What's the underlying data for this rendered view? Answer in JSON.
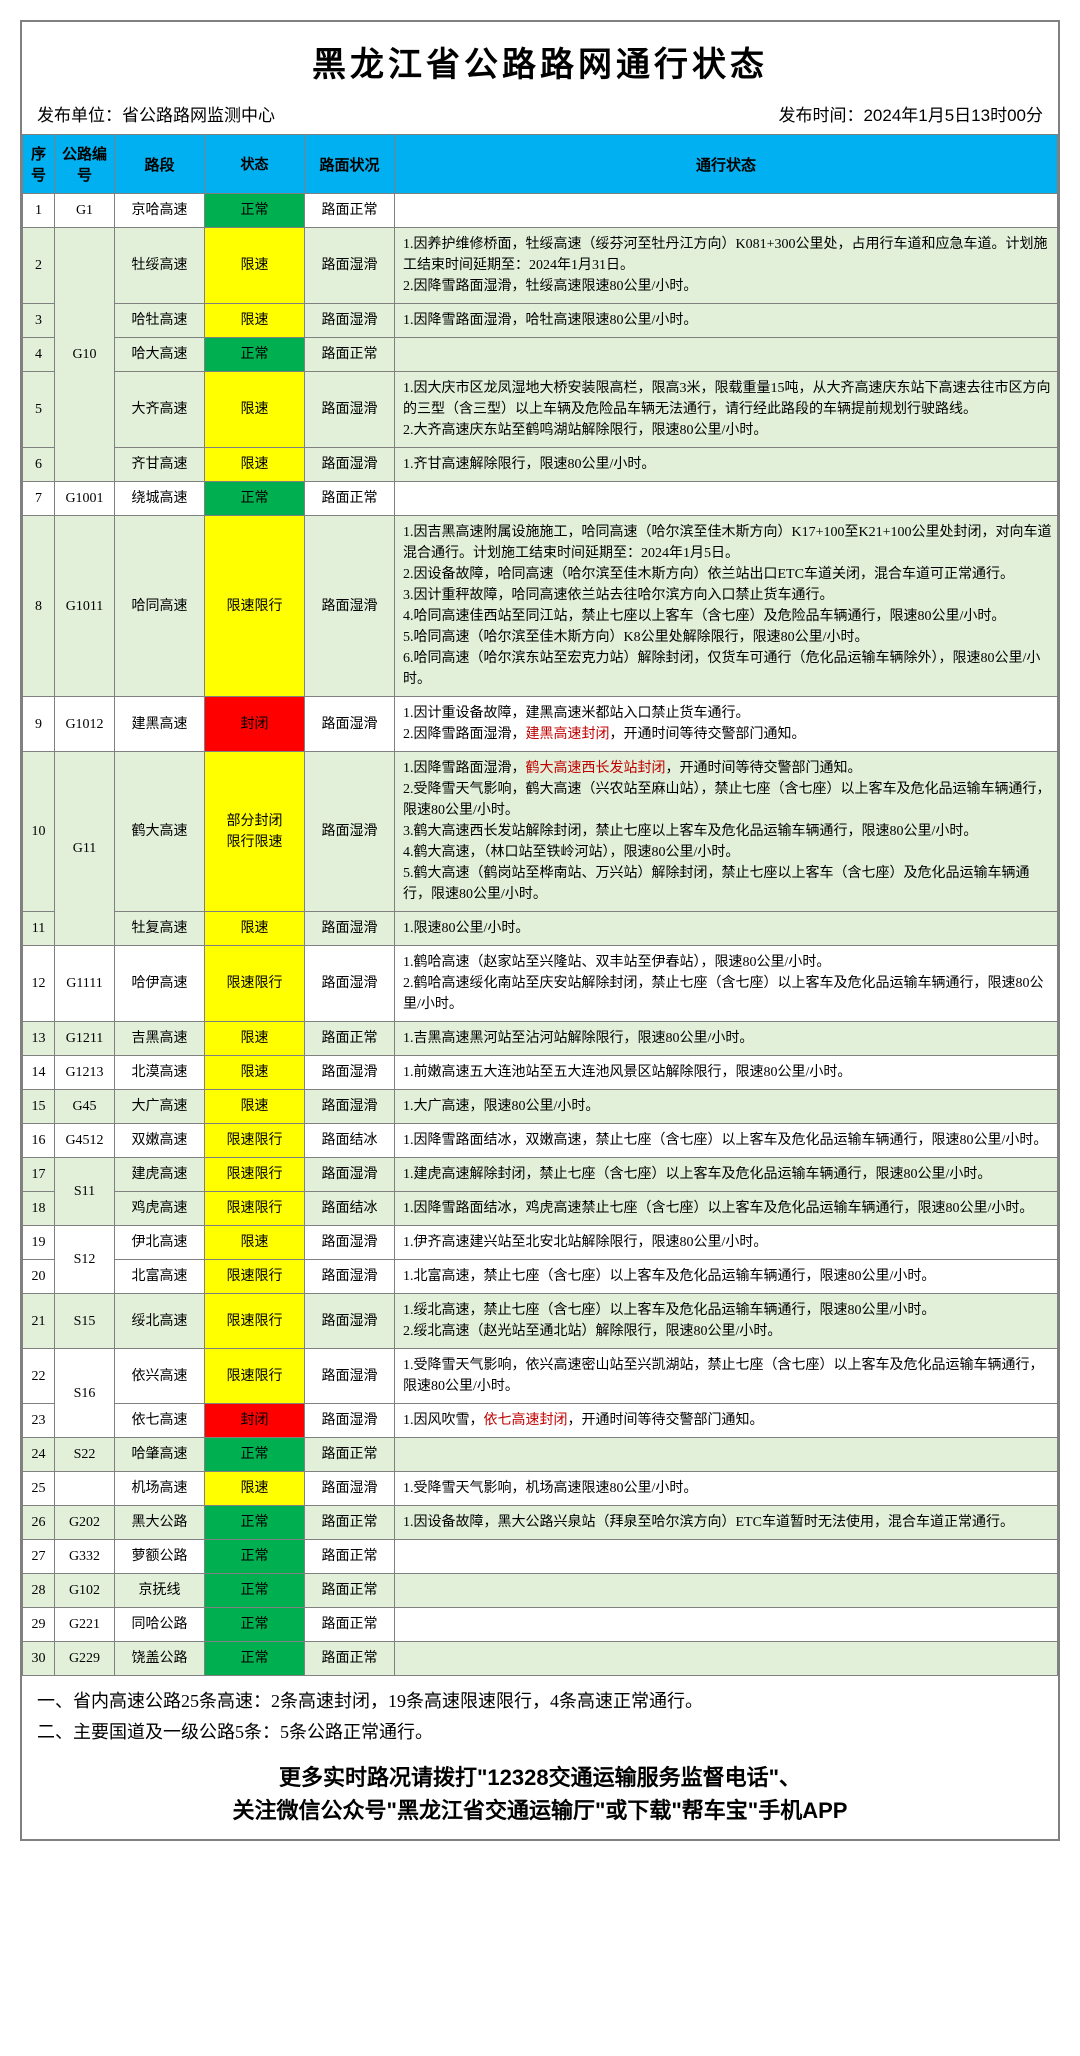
{
  "title": "黑龙江省公路路网通行状态",
  "publisher_label": "发布单位：省公路路网监测中心",
  "time_label": "发布时间：",
  "publish_time": "2024年1月5日13时00分",
  "headers": {
    "seq": "序号",
    "code": "公路编号",
    "section": "路段",
    "status": "状态",
    "surface": "路面状况",
    "detail": "通行状态"
  },
  "status_colors": {
    "normal": "#00b050",
    "limit": "#ffff00",
    "closed": "#ff0000"
  },
  "rows": [
    {
      "seq": "1",
      "code": "G1",
      "code_rowspan": 1,
      "section": "京哈高速",
      "status": "正常",
      "status_class": "status-normal",
      "surface": "路面正常",
      "detail": "",
      "parity": "odd"
    },
    {
      "seq": "2",
      "code": "G10",
      "code_rowspan": 5,
      "section": "牡绥高速",
      "status": "限速",
      "status_class": "status-limit",
      "surface": "路面湿滑",
      "detail": "1.因养护维修桥面，牡绥高速（绥芬河至牡丹江方向）K081+300公里处，占用行车道和应急车道。计划施工结束时间延期至：2024年1月31日。<br>2.因降雪路面湿滑，牡绥高速限速80公里/小时。",
      "parity": "even"
    },
    {
      "seq": "3",
      "code": "",
      "section": "哈牡高速",
      "status": "限速",
      "status_class": "status-limit",
      "surface": "路面湿滑",
      "detail": "1.因降雪路面湿滑，哈牡高速限速80公里/小时。",
      "parity": "even"
    },
    {
      "seq": "4",
      "code": "",
      "section": "哈大高速",
      "status": "正常",
      "status_class": "status-normal",
      "surface": "路面正常",
      "detail": "",
      "parity": "even"
    },
    {
      "seq": "5",
      "code": "",
      "section": "大齐高速",
      "status": "限速",
      "status_class": "status-limit",
      "surface": "路面湿滑",
      "detail": "1.因大庆市区龙凤湿地大桥安装限高栏，限高3米，限载重量15吨，从大齐高速庆东站下高速去往市区方向的三型（含三型）以上车辆及危险品车辆无法通行，请行经此路段的车辆提前规划行驶路线。<br>2.大齐高速庆东站至鹤鸣湖站解除限行，限速80公里/小时。",
      "parity": "even"
    },
    {
      "seq": "6",
      "code": "",
      "section": "齐甘高速",
      "status": "限速",
      "status_class": "status-limit",
      "surface": "路面湿滑",
      "detail": "1.齐甘高速解除限行，限速80公里/小时。",
      "parity": "even"
    },
    {
      "seq": "7",
      "code": "G1001",
      "code_rowspan": 1,
      "section": "绕城高速",
      "status": "正常",
      "status_class": "status-normal",
      "surface": "路面正常",
      "detail": "",
      "parity": "odd"
    },
    {
      "seq": "8",
      "code": "G1011",
      "code_rowspan": 1,
      "section": "哈同高速",
      "status": "限速限行",
      "status_class": "status-limit",
      "surface": "路面湿滑",
      "detail": "1.因吉黑高速附属设施施工，哈同高速（哈尔滨至佳木斯方向）K17+100至K21+100公里处封闭，对向车道混合通行。计划施工结束时间延期至：2024年1月5日。<br>2.因设备故障，哈同高速（哈尔滨至佳木斯方向）依兰站出口ETC车道关闭，混合车道可正常通行。<br>3.因计重秤故障，哈同高速依兰站去往哈尔滨方向入口禁止货车通行。<br>4.哈同高速佳西站至同江站，禁止七座以上客车（含七座）及危险品车辆通行，限速80公里/小时。<br>5.哈同高速（哈尔滨至佳木斯方向）K8公里处解除限行，限速80公里/小时。<br>6.哈同高速（哈尔滨东站至宏克力站）解除封闭，仅货车可通行（危化品运输车辆除外），限速80公里/小时。",
      "parity": "even"
    },
    {
      "seq": "9",
      "code": "G1012",
      "code_rowspan": 1,
      "section": "建黑高速",
      "status": "封闭",
      "status_class": "status-closed",
      "surface": "路面湿滑",
      "detail": "1.因计重设备故障，建黑高速米都站入口禁止货车通行。<br>2.因降雪路面湿滑，<span class=\"red-text\">建黑高速封闭</span>，开通时间等待交警部门通知。",
      "parity": "odd"
    },
    {
      "seq": "10",
      "code": "G11",
      "code_rowspan": 2,
      "section": "鹤大高速",
      "status": "部分封闭<br>限行限速",
      "status_class": "status-limit",
      "surface": "路面湿滑",
      "detail": "1.因降雪路面湿滑，<span class=\"red-text\">鹤大高速西长发站封闭</span>，开通时间等待交警部门通知。<br>2.受降雪天气影响，鹤大高速（兴农站至麻山站），禁止七座（含七座）以上客车及危化品运输车辆通行，限速80公里/小时。<br>3.鹤大高速西长发站解除封闭，禁止七座以上客车及危化品运输车辆通行，限速80公里/小时。<br>4.鹤大高速，（林口站至铁岭河站），限速80公里/小时。<br>5.鹤大高速（鹤岗站至桦南站、万兴站）解除封闭，禁止七座以上客车（含七座）及危化品运输车辆通行，限速80公里/小时。",
      "parity": "even"
    },
    {
      "seq": "11",
      "code": "",
      "section": "牡复高速",
      "status": "限速",
      "status_class": "status-limit",
      "surface": "路面湿滑",
      "detail": "1.限速80公里/小时。",
      "parity": "even"
    },
    {
      "seq": "12",
      "code": "G1111",
      "code_rowspan": 1,
      "section": "哈伊高速",
      "status": "限速限行",
      "status_class": "status-limit",
      "surface": "路面湿滑",
      "detail": "1.鹤哈高速（赵家站至兴隆站、双丰站至伊春站），限速80公里/小时。<br>2.鹤哈高速绥化南站至庆安站解除封闭，禁止七座（含七座）以上客车及危化品运输车辆通行，限速80公里/小时。",
      "parity": "odd"
    },
    {
      "seq": "13",
      "code": "G1211",
      "code_rowspan": 1,
      "section": "吉黑高速",
      "status": "限速",
      "status_class": "status-limit",
      "surface": "路面正常",
      "detail": "1.吉黑高速黑河站至沾河站解除限行，限速80公里/小时。",
      "parity": "even"
    },
    {
      "seq": "14",
      "code": "G1213",
      "code_rowspan": 1,
      "section": "北漠高速",
      "status": "限速",
      "status_class": "status-limit",
      "surface": "路面湿滑",
      "detail": "1.前嫩高速五大连池站至五大连池风景区站解除限行，限速80公里/小时。",
      "parity": "odd"
    },
    {
      "seq": "15",
      "code": "G45",
      "code_rowspan": 1,
      "section": "大广高速",
      "status": "限速",
      "status_class": "status-limit",
      "surface": "路面湿滑",
      "detail": "1.大广高速，限速80公里/小时。",
      "parity": "even"
    },
    {
      "seq": "16",
      "code": "G4512",
      "code_rowspan": 1,
      "section": "双嫩高速",
      "status": "限速限行",
      "status_class": "status-limit",
      "surface": "路面结冰",
      "detail": "1.因降雪路面结冰，双嫩高速，禁止七座（含七座）以上客车及危化品运输车辆通行，限速80公里/小时。",
      "parity": "odd"
    },
    {
      "seq": "17",
      "code": "S11",
      "code_rowspan": 2,
      "section": "建虎高速",
      "status": "限速限行",
      "status_class": "status-limit",
      "surface": "路面湿滑",
      "detail": "1.建虎高速解除封闭，禁止七座（含七座）以上客车及危化品运输车辆通行，限速80公里/小时。",
      "parity": "even"
    },
    {
      "seq": "18",
      "code": "",
      "section": "鸡虎高速",
      "status": "限速限行",
      "status_class": "status-limit",
      "surface": "路面结冰",
      "detail": "1.因降雪路面结冰，鸡虎高速禁止七座（含七座）以上客车及危化品运输车辆通行，限速80公里/小时。",
      "parity": "even"
    },
    {
      "seq": "19",
      "code": "S12",
      "code_rowspan": 2,
      "section": "伊北高速",
      "status": "限速",
      "status_class": "status-limit",
      "surface": "路面湿滑",
      "detail": "1.伊齐高速建兴站至北安北站解除限行，限速80公里/小时。",
      "parity": "odd"
    },
    {
      "seq": "20",
      "code": "",
      "section": "北富高速",
      "status": "限速限行",
      "status_class": "status-limit",
      "surface": "路面湿滑",
      "detail": "1.北富高速，禁止七座（含七座）以上客车及危化品运输车辆通行，限速80公里/小时。",
      "parity": "odd"
    },
    {
      "seq": "21",
      "code": "S15",
      "code_rowspan": 1,
      "section": "绥北高速",
      "status": "限速限行",
      "status_class": "status-limit",
      "surface": "路面湿滑",
      "detail": "1.绥北高速，禁止七座（含七座）以上客车及危化品运输车辆通行，限速80公里/小时。<br>2.绥北高速（赵光站至通北站）解除限行，限速80公里/小时。",
      "parity": "even"
    },
    {
      "seq": "22",
      "code": "S16",
      "code_rowspan": 2,
      "section": "依兴高速",
      "status": "限速限行",
      "status_class": "status-limit",
      "surface": "路面湿滑",
      "detail": "1.受降雪天气影响，依兴高速密山站至兴凯湖站，禁止七座（含七座）以上客车及危化品运输车辆通行，限速80公里/小时。",
      "parity": "odd"
    },
    {
      "seq": "23",
      "code": "",
      "section": "依七高速",
      "status": "封闭",
      "status_class": "status-closed",
      "surface": "路面湿滑",
      "detail": "1.因风吹雪，<span class=\"red-text\">依七高速封闭</span>，开通时间等待交警部门通知。",
      "parity": "odd"
    },
    {
      "seq": "24",
      "code": "S22",
      "code_rowspan": 1,
      "section": "哈肇高速",
      "status": "正常",
      "status_class": "status-normal",
      "surface": "路面正常",
      "detail": "",
      "parity": "even"
    },
    {
      "seq": "25",
      "code": "",
      "code_rowspan": 1,
      "section": "机场高速",
      "status": "限速",
      "status_class": "status-limit",
      "surface": "路面湿滑",
      "detail": "1.受降雪天气影响，机场高速限速80公里/小时。",
      "parity": "odd"
    },
    {
      "seq": "26",
      "code": "G202",
      "code_rowspan": 1,
      "section": "黑大公路",
      "status": "正常",
      "status_class": "status-normal",
      "surface": "路面正常",
      "detail": "1.因设备故障，黑大公路兴泉站（拜泉至哈尔滨方向）ETC车道暂时无法使用，混合车道正常通行。",
      "parity": "even"
    },
    {
      "seq": "27",
      "code": "G332",
      "code_rowspan": 1,
      "section": "萝额公路",
      "status": "正常",
      "status_class": "status-normal",
      "surface": "路面正常",
      "detail": "",
      "parity": "odd"
    },
    {
      "seq": "28",
      "code": "G102",
      "code_rowspan": 1,
      "section": "京抚线",
      "status": "正常",
      "status_class": "status-normal",
      "surface": "路面正常",
      "detail": "",
      "parity": "even"
    },
    {
      "seq": "29",
      "code": "G221",
      "code_rowspan": 1,
      "section": "同哈公路",
      "status": "正常",
      "status_class": "status-normal",
      "surface": "路面正常",
      "detail": "",
      "parity": "odd"
    },
    {
      "seq": "30",
      "code": "G229",
      "code_rowspan": 1,
      "section": "饶盖公路",
      "status": "正常",
      "status_class": "status-normal",
      "surface": "路面正常",
      "detail": "",
      "parity": "even"
    }
  ],
  "summary": {
    "line1": "一、省内高速公路25条高速：2条高速封闭，19条高速限速限行，4条高速正常通行。",
    "line2": "二、主要国道及一级公路5条：5条公路正常通行。"
  },
  "footer": {
    "line1": "更多实时路况请拨打\"12328交通运输服务监督电话\"、",
    "line2": "关注微信公众号\"黑龙江省交通运输厅\"或下载\"帮车宝\"手机APP"
  }
}
